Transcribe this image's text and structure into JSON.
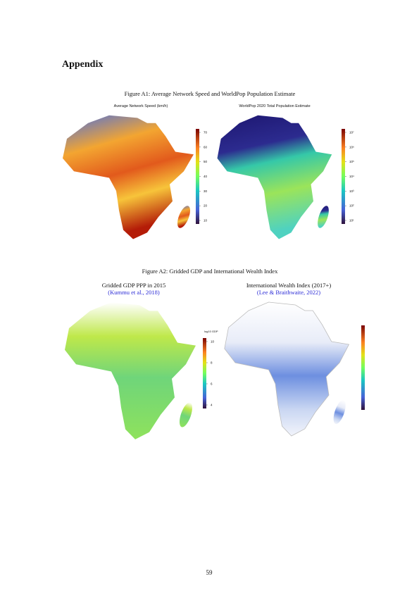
{
  "heading": "Appendix",
  "figures": [
    {
      "caption": "Figure A1:   Average Network Speed and WorldPop Population Estimate",
      "panels": [
        {
          "title": "Average Network Speed (km/h)",
          "colorbar": {
            "ticks": [
              "70",
              "60",
              "50",
              "40",
              "30",
              "20",
              "10"
            ]
          }
        },
        {
          "title": "WorldPop 2020 Total Population Estimate",
          "colorbar": {
            "ticks": [
              "10⁷",
              "10⁶",
              "10⁵",
              "10⁴",
              "10³",
              "10²",
              "10¹"
            ]
          }
        }
      ]
    },
    {
      "caption": "Figure A2:   Gridded GDP and International Wealth Index",
      "panels": [
        {
          "title": "Gridded GDP PPP in 2015",
          "citation": "(Kummu et al., 2018)",
          "colorbar": {
            "label": "log10 GDP",
            "ticks": [
              "10",
              "8",
              "6",
              "4"
            ]
          }
        },
        {
          "title": "International Wealth Index (2017+)",
          "citation": "(Lee & Braithwaite, 2022)"
        }
      ]
    }
  ],
  "page_number": "59"
}
